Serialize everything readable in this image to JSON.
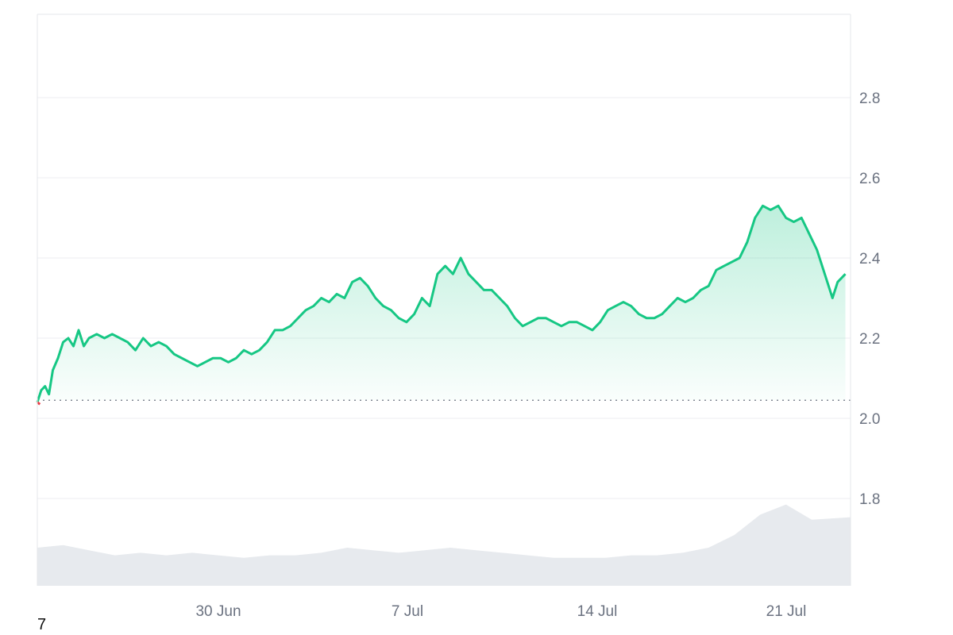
{
  "corner_label": "7",
  "colors": {
    "line_up": "#16c784",
    "line_down": "#ea3943",
    "area_top": "#16c784",
    "volume_fill": "#e7eaee",
    "grid": "#eceef1",
    "baseline": "#6b7280",
    "tick_text": "#6b7280"
  },
  "chart_data": {
    "type": "area",
    "x_ticks": [
      "30 Jun",
      "7 Jul",
      "14 Jul",
      "21 Jul"
    ],
    "y_ticks": [
      "1.8",
      "2.0",
      "2.2",
      "2.4",
      "2.6",
      "2.8"
    ],
    "ylim": [
      1.6,
      3.0
    ],
    "xlim": [
      0,
      31.5
    ],
    "grid": true,
    "baseline_value": 2.045,
    "series": [
      {
        "values": [
          [
            0.0,
            2.04
          ],
          [
            0.15,
            2.07
          ],
          [
            0.3,
            2.08
          ],
          [
            0.45,
            2.06
          ],
          [
            0.6,
            2.12
          ],
          [
            0.8,
            2.15
          ],
          [
            1.0,
            2.19
          ],
          [
            1.2,
            2.2
          ],
          [
            1.4,
            2.18
          ],
          [
            1.6,
            2.22
          ],
          [
            1.8,
            2.18
          ],
          [
            2.0,
            2.2
          ],
          [
            2.3,
            2.21
          ],
          [
            2.6,
            2.2
          ],
          [
            2.9,
            2.21
          ],
          [
            3.2,
            2.2
          ],
          [
            3.5,
            2.19
          ],
          [
            3.8,
            2.17
          ],
          [
            4.1,
            2.2
          ],
          [
            4.4,
            2.18
          ],
          [
            4.7,
            2.19
          ],
          [
            5.0,
            2.18
          ],
          [
            5.3,
            2.16
          ],
          [
            5.6,
            2.15
          ],
          [
            5.9,
            2.14
          ],
          [
            6.2,
            2.13
          ],
          [
            6.5,
            2.14
          ],
          [
            6.8,
            2.15
          ],
          [
            7.1,
            2.15
          ],
          [
            7.4,
            2.14
          ],
          [
            7.7,
            2.15
          ],
          [
            8.0,
            2.17
          ],
          [
            8.3,
            2.16
          ],
          [
            8.6,
            2.17
          ],
          [
            8.9,
            2.19
          ],
          [
            9.2,
            2.22
          ],
          [
            9.5,
            2.22
          ],
          [
            9.8,
            2.23
          ],
          [
            10.1,
            2.25
          ],
          [
            10.4,
            2.27
          ],
          [
            10.7,
            2.28
          ],
          [
            11.0,
            2.3
          ],
          [
            11.3,
            2.29
          ],
          [
            11.6,
            2.31
          ],
          [
            11.9,
            2.3
          ],
          [
            12.2,
            2.34
          ],
          [
            12.5,
            2.35
          ],
          [
            12.8,
            2.33
          ],
          [
            13.1,
            2.3
          ],
          [
            13.4,
            2.28
          ],
          [
            13.7,
            2.27
          ],
          [
            14.0,
            2.25
          ],
          [
            14.3,
            2.24
          ],
          [
            14.6,
            2.26
          ],
          [
            14.9,
            2.3
          ],
          [
            15.2,
            2.28
          ],
          [
            15.5,
            2.36
          ],
          [
            15.8,
            2.38
          ],
          [
            16.1,
            2.36
          ],
          [
            16.4,
            2.4
          ],
          [
            16.7,
            2.36
          ],
          [
            17.0,
            2.34
          ],
          [
            17.3,
            2.32
          ],
          [
            17.6,
            2.32
          ],
          [
            17.9,
            2.3
          ],
          [
            18.2,
            2.28
          ],
          [
            18.5,
            2.25
          ],
          [
            18.8,
            2.23
          ],
          [
            19.1,
            2.24
          ],
          [
            19.4,
            2.25
          ],
          [
            19.7,
            2.25
          ],
          [
            20.0,
            2.24
          ],
          [
            20.3,
            2.23
          ],
          [
            20.6,
            2.24
          ],
          [
            20.9,
            2.24
          ],
          [
            21.2,
            2.23
          ],
          [
            21.5,
            2.22
          ],
          [
            21.8,
            2.24
          ],
          [
            22.1,
            2.27
          ],
          [
            22.4,
            2.28
          ],
          [
            22.7,
            2.29
          ],
          [
            23.0,
            2.28
          ],
          [
            23.3,
            2.26
          ],
          [
            23.6,
            2.25
          ],
          [
            23.9,
            2.25
          ],
          [
            24.2,
            2.26
          ],
          [
            24.5,
            2.28
          ],
          [
            24.8,
            2.3
          ],
          [
            25.1,
            2.29
          ],
          [
            25.4,
            2.3
          ],
          [
            25.7,
            2.32
          ],
          [
            26.0,
            2.33
          ],
          [
            26.3,
            2.37
          ],
          [
            26.6,
            2.38
          ],
          [
            26.9,
            2.39
          ],
          [
            27.2,
            2.4
          ],
          [
            27.5,
            2.44
          ],
          [
            27.8,
            2.5
          ],
          [
            28.1,
            2.53
          ],
          [
            28.4,
            2.52
          ],
          [
            28.7,
            2.53
          ],
          [
            29.0,
            2.5
          ],
          [
            29.3,
            2.49
          ],
          [
            29.6,
            2.5
          ],
          [
            29.9,
            2.46
          ],
          [
            30.2,
            2.42
          ],
          [
            30.5,
            2.36
          ],
          [
            30.8,
            2.3
          ],
          [
            31.0,
            2.34
          ],
          [
            31.3,
            2.36
          ]
        ]
      }
    ],
    "volume_area": {
      "values": [
        [
          0.0,
          0.15
        ],
        [
          1.0,
          0.16
        ],
        [
          2.0,
          0.14
        ],
        [
          3.0,
          0.12
        ],
        [
          4.0,
          0.13
        ],
        [
          5.0,
          0.12
        ],
        [
          6.0,
          0.13
        ],
        [
          7.0,
          0.12
        ],
        [
          8.0,
          0.11
        ],
        [
          9.0,
          0.12
        ],
        [
          10.0,
          0.12
        ],
        [
          11.0,
          0.13
        ],
        [
          12.0,
          0.15
        ],
        [
          13.0,
          0.14
        ],
        [
          14.0,
          0.13
        ],
        [
          15.0,
          0.14
        ],
        [
          16.0,
          0.15
        ],
        [
          17.0,
          0.14
        ],
        [
          18.0,
          0.13
        ],
        [
          19.0,
          0.12
        ],
        [
          20.0,
          0.11
        ],
        [
          21.0,
          0.11
        ],
        [
          22.0,
          0.11
        ],
        [
          23.0,
          0.12
        ],
        [
          24.0,
          0.12
        ],
        [
          25.0,
          0.13
        ],
        [
          26.0,
          0.15
        ],
        [
          27.0,
          0.2
        ],
        [
          28.0,
          0.28
        ],
        [
          29.0,
          0.32
        ],
        [
          30.0,
          0.26
        ],
        [
          31.5,
          0.27
        ]
      ]
    }
  }
}
